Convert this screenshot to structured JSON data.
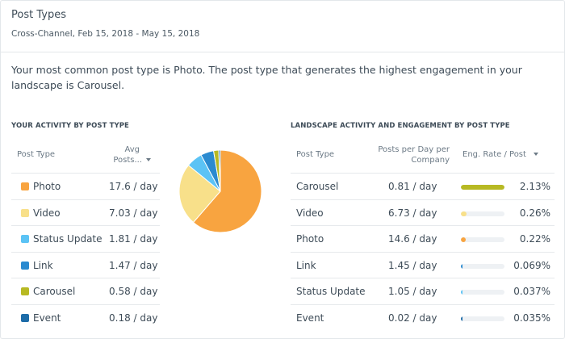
{
  "header": {
    "title": "Post Types",
    "subtitle": "Cross-Channel, Feb 15, 2018 - May 15, 2018"
  },
  "summary": "Your most common post type is Photo. The post type that generates the highest engagement in your landscape is Carousel.",
  "left": {
    "section_title": "YOUR ACTIVITY BY POST TYPE",
    "col_type": "Post Type",
    "col_avg_line1": "Avg",
    "col_avg_line2": "Posts...",
    "rows": [
      {
        "type": "Photo",
        "avg": "17.6 / day",
        "color": "#f8a440"
      },
      {
        "type": "Video",
        "avg": "7.03 / day",
        "color": "#f8e08a"
      },
      {
        "type": "Status Update",
        "avg": "1.81 / day",
        "color": "#5bc3f5"
      },
      {
        "type": "Link",
        "avg": "1.47 / day",
        "color": "#2a8ad0"
      },
      {
        "type": "Carousel",
        "avg": "0.58 / day",
        "color": "#b7b923"
      },
      {
        "type": "Event",
        "avg": "0.18 / day",
        "color": "#1d6ca8"
      }
    ]
  },
  "chart_data": {
    "type": "pie",
    "categories": [
      "Photo",
      "Video",
      "Status Update",
      "Link",
      "Carousel",
      "Event"
    ],
    "values": [
      17.6,
      7.03,
      1.81,
      1.47,
      0.58,
      0.18
    ],
    "colors": [
      "#f8a440",
      "#f8e08a",
      "#5bc3f5",
      "#2a8ad0",
      "#b7b923",
      "#1d6ca8"
    ]
  },
  "right": {
    "section_title": "LANDSCAPE ACTIVITY AND ENGAGEMENT BY POST TYPE",
    "col_type": "Post Type",
    "col_ppd_line1": "Posts per Day per",
    "col_ppd_line2": "Company",
    "col_eng": "Eng. Rate / Post",
    "rows": [
      {
        "type": "Carousel",
        "ppd": "0.81 / day",
        "rate": "2.13%",
        "rate_fraction": 1.0,
        "color": "#b7b923"
      },
      {
        "type": "Video",
        "ppd": "6.73 / day",
        "rate": "0.26%",
        "rate_fraction": 0.122,
        "color": "#f8e08a"
      },
      {
        "type": "Photo",
        "ppd": "14.6 / day",
        "rate": "0.22%",
        "rate_fraction": 0.103,
        "color": "#f8a440"
      },
      {
        "type": "Link",
        "ppd": "1.45 / day",
        "rate": "0.069%",
        "rate_fraction": 0.032,
        "color": "#2a8ad0"
      },
      {
        "type": "Status Update",
        "ppd": "1.05 / day",
        "rate": "0.037%",
        "rate_fraction": 0.017,
        "color": "#5bc3f5"
      },
      {
        "type": "Event",
        "ppd": "0.02 / day",
        "rate": "0.035%",
        "rate_fraction": 0.016,
        "color": "#1d6ca8"
      }
    ]
  }
}
